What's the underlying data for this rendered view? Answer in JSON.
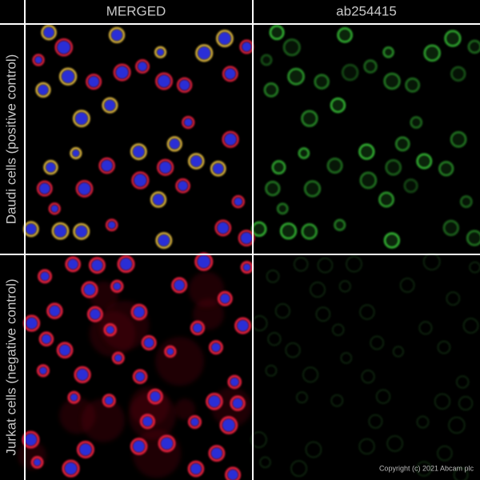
{
  "header": {
    "columns": [
      "MERGED",
      "ab254415"
    ]
  },
  "rows": [
    "Daudi cells (positive control)",
    "Jurkat cells (negative control)"
  ],
  "copyright": "Copyright (c) 2021 Abcam plc"
}
